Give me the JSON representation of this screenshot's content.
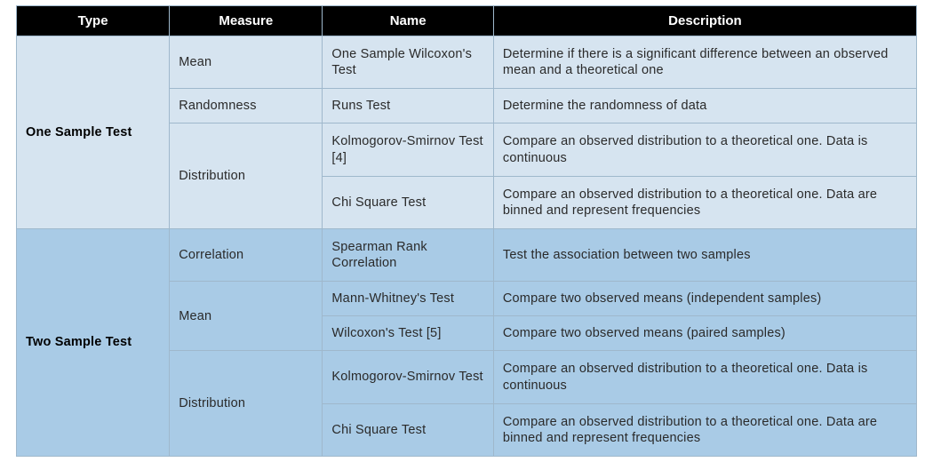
{
  "table": {
    "columns": [
      "Type",
      "Measure",
      "Name",
      "Description"
    ],
    "header_bg": "#000000",
    "header_fg": "#ffffff",
    "border_color": "#9fb8cc",
    "text_color": "#2a2a2a",
    "font_family": "Verdana",
    "font_size_header": 15,
    "font_size_body": 14.5,
    "col_widths_pct": [
      17,
      17,
      19,
      47
    ],
    "sections": [
      {
        "type": "One Sample Test",
        "bg": "#d6e4f0",
        "measures": [
          {
            "measure": "Mean",
            "tests": [
              {
                "name": "One Sample Wilcoxon's Test",
                "description": "Determine if there is a significant difference between an observed mean and a theoretical one"
              }
            ]
          },
          {
            "measure": "Randomness",
            "tests": [
              {
                "name": "Runs Test",
                "description": "Determine the randomness of data"
              }
            ]
          },
          {
            "measure": "Distribution",
            "tests": [
              {
                "name": "Kolmogorov-Smirnov Test [4]",
                "description": "Compare an observed distribution to a theoretical one. Data is continuous"
              },
              {
                "name": "Chi Square Test",
                "description": "Compare an observed distribution to a theoretical one. Data are binned and represent frequencies"
              }
            ]
          }
        ]
      },
      {
        "type": "Two Sample Test",
        "bg": "#a9cbe6",
        "measures": [
          {
            "measure": "Correlation",
            "tests": [
              {
                "name": "Spearman Rank Correlation",
                "description": "Test the association between two samples"
              }
            ]
          },
          {
            "measure": "Mean",
            "tests": [
              {
                "name": "Mann-Whitney's Test",
                "description": "Compare two observed means (independent samples)"
              },
              {
                "name": "Wilcoxon's Test [5]",
                "description": "Compare two observed means (paired samples)"
              }
            ]
          },
          {
            "measure": "Distribution",
            "tests": [
              {
                "name": "Kolmogorov-Smirnov Test",
                "description": "Compare an observed distribution to a theoretical one. Data is continuous"
              },
              {
                "name": "Chi Square Test",
                "description": "Compare an observed distribution to a theoretical one. Data are binned and represent frequencies"
              }
            ]
          }
        ]
      }
    ]
  }
}
